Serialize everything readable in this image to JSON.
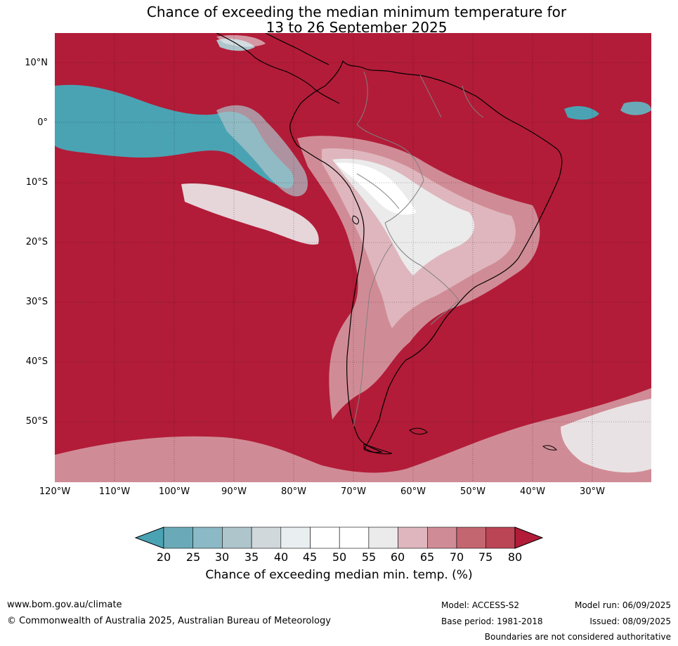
{
  "title": {
    "line1": "Chance of exceeding the median minimum temperature for",
    "line2": "13 to 26 September 2025"
  },
  "map": {
    "latitude_labels": [
      "10°N",
      "0°",
      "10°S",
      "20°S",
      "30°S",
      "40°S",
      "50°S"
    ],
    "longitude_labels": [
      "120°W",
      "110°W",
      "100°W",
      "90°W",
      "80°W",
      "70°W",
      "60°W",
      "50°W",
      "40°W",
      "30°W"
    ],
    "background_color": "#b21c38",
    "coast_color": "#000000",
    "border_color": "#808080"
  },
  "legend": {
    "ticks": [
      "20",
      "25",
      "30",
      "35",
      "40",
      "45",
      "50",
      "55",
      "60",
      "65",
      "70",
      "75",
      "80"
    ],
    "colors": [
      "#4aa3b3",
      "#6aaab8",
      "#8bb9c6",
      "#aec5cc",
      "#d0d8dc",
      "#e9eef0",
      "#ffffff",
      "#ffffff",
      "#ebebec",
      "#dfb6bd",
      "#d08c96",
      "#c46670",
      "#bb4455",
      "#b21c38"
    ],
    "label": "Chance of exceeding median min. temp. (%)"
  },
  "footer": {
    "url": "www.bom.gov.au/climate",
    "copyright": "© Commonwealth of Australia 2025, Australian Bureau of Meteorology",
    "model": "Model: ACCESS-S2",
    "model_run": "Model run: 06/09/2025",
    "base_period": "Base period: 1981-2018",
    "issued": "Issued: 08/09/2025",
    "disclaimer": "Boundaries are not considered authoritative"
  }
}
